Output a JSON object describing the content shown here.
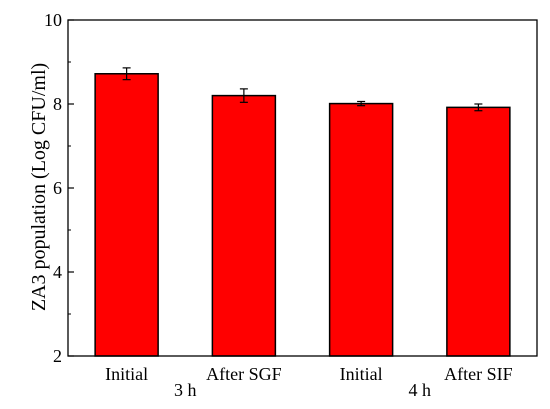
{
  "chart_data": {
    "type": "bar",
    "categories": [
      "Initial",
      "After SGF",
      "Initial",
      "After SIF"
    ],
    "groups": [
      "3 h",
      "4 h"
    ],
    "values": [
      8.72,
      8.2,
      8.01,
      7.92
    ],
    "errors": [
      0.14,
      0.16,
      0.05,
      0.08
    ],
    "title": "",
    "xlabel": "",
    "ylabel": "ZA3 population (Log CFU/ml)",
    "ylim": [
      2,
      10
    ],
    "yticks": [
      2,
      4,
      6,
      8,
      10
    ],
    "grid": false,
    "legend": "none",
    "colors": {
      "bar": "#ff0000",
      "outline": "#000000"
    }
  }
}
